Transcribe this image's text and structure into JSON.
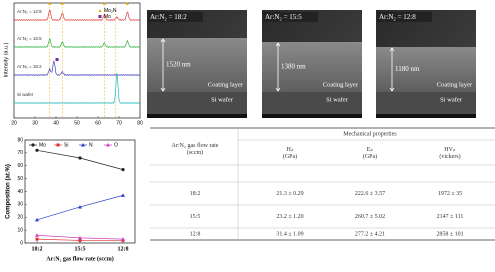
{
  "xrd": {
    "y_label": "Intensity (a.u.)",
    "xlim": [
      20,
      80
    ],
    "xticks": [
      20,
      30,
      40,
      50,
      60,
      70,
      80
    ],
    "traces": [
      "Ar:N₂ = 12:8",
      "Ar:N₂ = 15:5",
      "Ar:N₂ = 18:2",
      "Si wafer"
    ],
    "legend": [
      "Mo₂N",
      "Mo"
    ]
  },
  "sem": [
    {
      "label": "Ar:N₂ = 18:2",
      "thickness": "1520 nm",
      "layer": "Coating layer",
      "substrate": "Si wafer"
    },
    {
      "label": "Ar:N₂ = 15:5",
      "thickness": "1380 nm",
      "layer": "Coating layer",
      "substrate": "Si wafer"
    },
    {
      "label": "Ar:N₂ = 12:8",
      "thickness": "1180 nm",
      "layer": "Coating layer",
      "substrate": "Si wafer"
    }
  ],
  "composition": {
    "type": "line",
    "y_label": "Composition (at.%)",
    "x_label": "Ar:N₂ gas flow rate (sccm)",
    "categories": [
      "18:2",
      "15:5",
      "12:8"
    ],
    "ylim": [
      0,
      80
    ],
    "yticks": [
      0,
      10,
      20,
      30,
      40,
      50,
      60,
      70,
      80
    ],
    "series": [
      {
        "name": "Mo",
        "color": "#222222",
        "values": [
          72,
          66,
          57
        ]
      },
      {
        "name": "Si",
        "color": "#e03030",
        "values": [
          3,
          2,
          2
        ]
      },
      {
        "name": "N",
        "color": "#2a3fd0",
        "values": [
          18,
          28,
          37
        ]
      },
      {
        "name": "O",
        "color": "#d040c0",
        "values": [
          6,
          4,
          3
        ]
      }
    ]
  },
  "table": {
    "col0": "Ar:N₂ gas flow rate (sccm)",
    "group": "Mechanical properties",
    "cols": [
      "Hᵢₜ (GPa)",
      "Eᵢₜ (GPa)",
      "HVᵢₜ (vickers)"
    ],
    "rows": [
      [
        "18:2",
        "21.3 ± 0.29",
        "222.6 ± 3.57",
        "1972 ± 35"
      ],
      [
        "15:5",
        "23.2 ± 1.20",
        "260.7 ± 5.02",
        "2147 ± 111"
      ],
      [
        "12:8",
        "31.4 ± 1.09",
        "277.2 ± 4.21",
        "2858 ± 101"
      ]
    ]
  }
}
